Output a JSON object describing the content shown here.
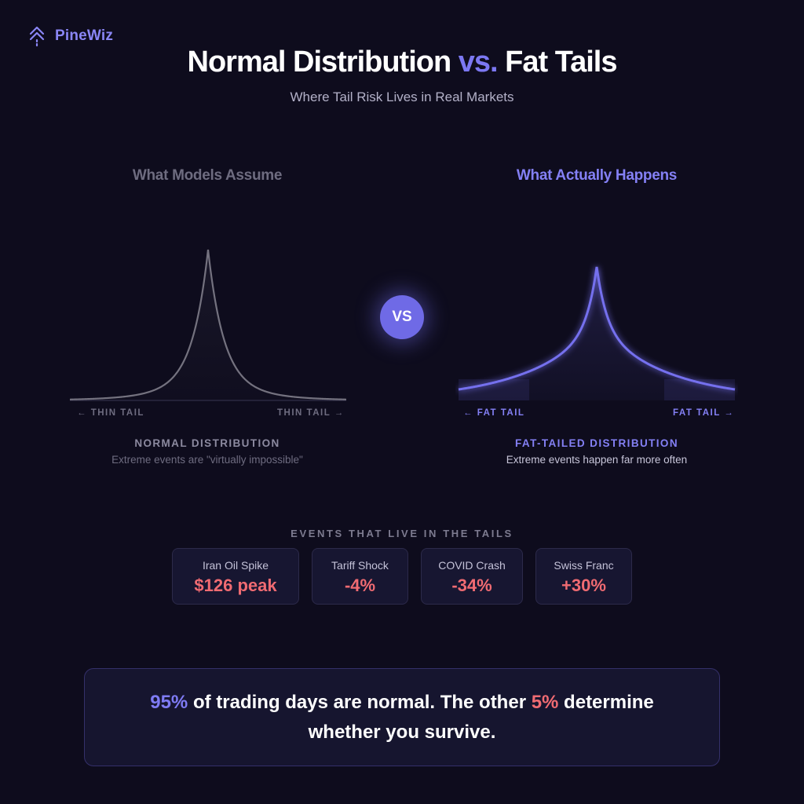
{
  "brand": {
    "name": "PineWiz",
    "icon": "pine-tree-icon"
  },
  "header": {
    "title_part1": "Normal Distribution ",
    "title_vs": "vs.",
    "title_part2": " Fat Tails",
    "subtitle": "Where Tail Risk Lives in Real Markets"
  },
  "left_panel": {
    "heading": "What Models Assume",
    "tail_left": "← THIN TAIL",
    "tail_right": "THIN TAIL →",
    "dist_title": "NORMAL DISTRIBUTION",
    "dist_desc": "Extreme events are \"virtually impossible\"",
    "color": "#6e6c80"
  },
  "vs_badge": "VS",
  "right_panel": {
    "heading": "What Actually Happens",
    "tail_left": "← FAT TAIL",
    "tail_right": "FAT TAIL →",
    "dist_title": "FAT-TAILED DISTRIBUTION",
    "dist_desc": "Extreme events happen far more often",
    "color": "#7c78f2"
  },
  "events": {
    "title": "EVENTS THAT LIVE IN THE TAILS",
    "items": [
      {
        "name": "Iran Oil Spike",
        "value": "$126 peak"
      },
      {
        "name": "Tariff Shock",
        "value": "-4%"
      },
      {
        "name": "COVID Crash",
        "value": "-34%"
      },
      {
        "name": "Swiss Franc",
        "value": "+30%"
      }
    ]
  },
  "callout": {
    "pct1": "95%",
    "text1": " of trading days are normal. The other ",
    "pct2": "5%",
    "text2": " determine whether you survive."
  },
  "colors": {
    "background": "#0e0c1d",
    "accent": "#7c78f2",
    "negative": "#f06b72"
  }
}
